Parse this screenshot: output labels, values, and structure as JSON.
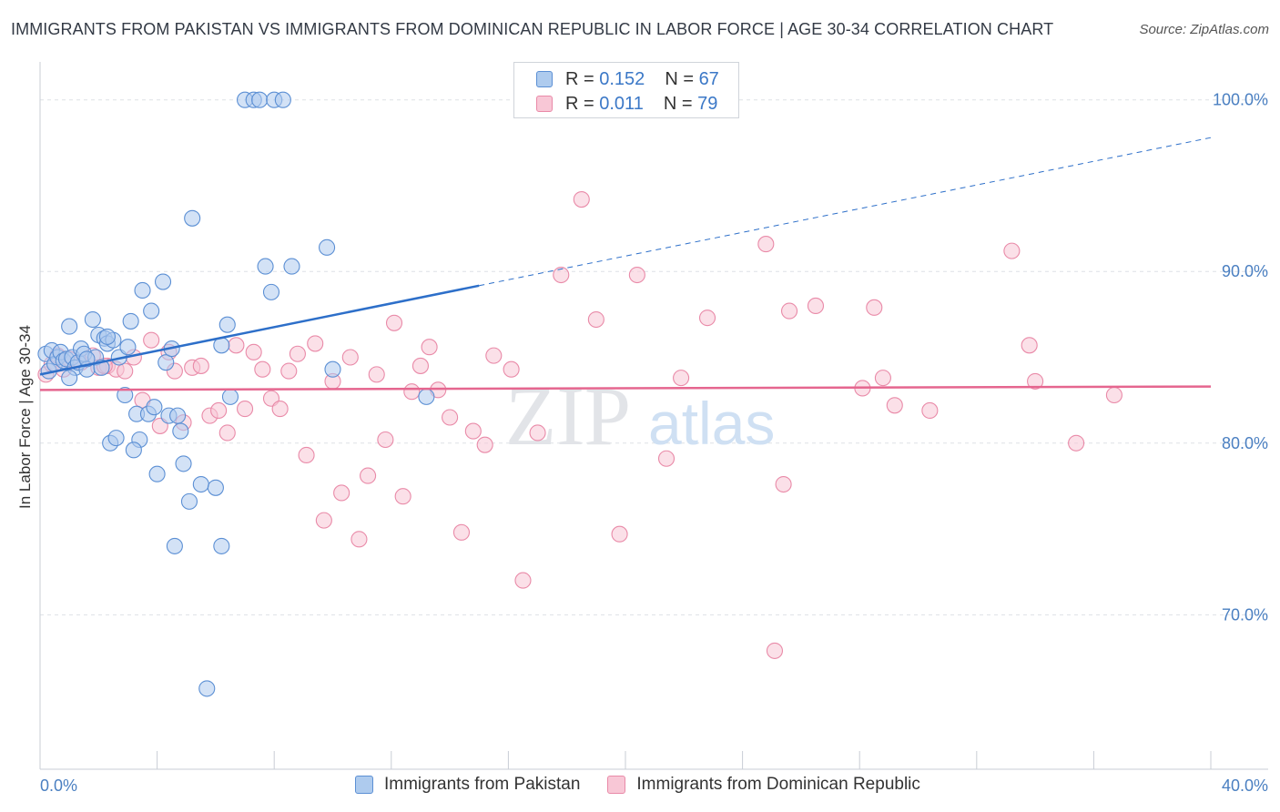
{
  "header": {
    "title": "IMMIGRANTS FROM PAKISTAN VS IMMIGRANTS FROM DOMINICAN REPUBLIC IN LABOR FORCE | AGE 30-34 CORRELATION CHART",
    "source": "Source: ZipAtlas.com"
  },
  "watermark": {
    "zip": "ZIP",
    "atlas": "atlas"
  },
  "legend_top": {
    "rows": [
      {
        "r_label": "R = ",
        "r_value": "0.152",
        "n_label": "N = ",
        "n_value": "67"
      },
      {
        "r_label": "R = ",
        "r_value": "0.011",
        "n_label": "N = ",
        "n_value": "79"
      }
    ]
  },
  "legend_bottom": {
    "items": [
      {
        "label": "Immigrants from Pakistan"
      },
      {
        "label": "Immigrants from Dominican Republic"
      }
    ]
  },
  "colors": {
    "pakistan_fill": "#aecbee",
    "pakistan_stroke": "#5b8fd4",
    "pakistan_line": "#2d6fc9",
    "dominican_fill": "#f8c7d6",
    "dominican_stroke": "#e98aa8",
    "dominican_line": "#e5668f",
    "grid": "#dde1e6",
    "axis_text": "#4a7fc1"
  },
  "chart_data": {
    "type": "scatter",
    "title": "IMMIGRANTS FROM PAKISTAN VS IMMIGRANTS FROM DOMINICAN REPUBLIC IN LABOR FORCE | AGE 30-34 CORRELATION CHART",
    "xlabel": "",
    "ylabel": "In Labor Force | Age 30-34",
    "xlim": [
      0,
      40
    ],
    "ylim": [
      61,
      102
    ],
    "x_tick_labels": [
      {
        "value": 0,
        "label": "0.0%"
      },
      {
        "value": 40,
        "label": "40.0%"
      }
    ],
    "y_tick_labels": [
      {
        "value": 100,
        "label": "100.0%"
      },
      {
        "value": 90,
        "label": "90.0%"
      },
      {
        "value": 80,
        "label": "80.0%"
      },
      {
        "value": 70,
        "label": "70.0%"
      }
    ],
    "y_gridlines": [
      100,
      90,
      80,
      70
    ],
    "x_minor_ticks": [
      4,
      8,
      12,
      16,
      20,
      24,
      28,
      32,
      36,
      40
    ],
    "series": [
      {
        "name": "Immigrants from Pakistan",
        "R": 0.152,
        "N": 67,
        "trend": {
          "x_start": 0,
          "y_start": 84.0,
          "x_solid_end": 15.0,
          "x_end": 40,
          "y_end": 97.8
        },
        "points": [
          [
            0.2,
            85.2
          ],
          [
            0.3,
            84.2
          ],
          [
            0.4,
            85.4
          ],
          [
            0.5,
            84.6
          ],
          [
            0.6,
            85.0
          ],
          [
            0.7,
            85.3
          ],
          [
            0.8,
            84.8
          ],
          [
            0.9,
            84.9
          ],
          [
            1.0,
            86.8
          ],
          [
            1.1,
            85.0
          ],
          [
            1.2,
            84.4
          ],
          [
            1.3,
            84.7
          ],
          [
            1.0,
            83.8
          ],
          [
            1.4,
            85.5
          ],
          [
            1.5,
            85.2
          ],
          [
            1.6,
            84.3
          ],
          [
            1.8,
            87.2
          ],
          [
            1.9,
            85.0
          ],
          [
            1.6,
            84.9
          ],
          [
            2.0,
            86.3
          ],
          [
            2.2,
            86.1
          ],
          [
            2.3,
            85.8
          ],
          [
            2.4,
            80.0
          ],
          [
            2.5,
            86.0
          ],
          [
            2.6,
            80.3
          ],
          [
            2.7,
            85.0
          ],
          [
            2.3,
            86.2
          ],
          [
            2.9,
            82.8
          ],
          [
            3.0,
            85.6
          ],
          [
            3.1,
            87.1
          ],
          [
            3.3,
            81.7
          ],
          [
            3.4,
            80.2
          ],
          [
            3.5,
            88.9
          ],
          [
            3.7,
            81.7
          ],
          [
            3.8,
            87.7
          ],
          [
            3.9,
            82.1
          ],
          [
            4.0,
            78.2
          ],
          [
            4.2,
            89.4
          ],
          [
            4.3,
            84.7
          ],
          [
            4.4,
            81.6
          ],
          [
            4.5,
            85.5
          ],
          [
            4.6,
            74.0
          ],
          [
            4.7,
            81.6
          ],
          [
            4.8,
            80.7
          ],
          [
            4.9,
            78.8
          ],
          [
            5.1,
            76.6
          ],
          [
            5.2,
            93.1
          ],
          [
            5.5,
            77.6
          ],
          [
            5.7,
            65.7
          ],
          [
            6.0,
            77.4
          ],
          [
            6.2,
            74.0
          ],
          [
            6.4,
            86.9
          ],
          [
            6.5,
            82.7
          ],
          [
            6.2,
            85.7
          ],
          [
            7.0,
            100.0
          ],
          [
            7.3,
            100.0
          ],
          [
            7.5,
            100.0
          ],
          [
            7.7,
            90.3
          ],
          [
            7.9,
            88.8
          ],
          [
            8.0,
            100.0
          ],
          [
            8.3,
            100.0
          ],
          [
            8.6,
            90.3
          ],
          [
            9.8,
            91.4
          ],
          [
            13.2,
            82.7
          ],
          [
            10.0,
            84.3
          ],
          [
            2.1,
            84.4
          ],
          [
            3.2,
            79.6
          ]
        ]
      },
      {
        "name": "Immigrants from Dominican Republic",
        "R": 0.011,
        "N": 79,
        "trend": {
          "x_start": 0,
          "y_start": 83.1,
          "x_end": 40,
          "y_end": 83.3
        },
        "points": [
          [
            0.2,
            84.0
          ],
          [
            0.4,
            84.6
          ],
          [
            0.6,
            85.1
          ],
          [
            0.8,
            84.3
          ],
          [
            1.0,
            84.9
          ],
          [
            1.4,
            84.7
          ],
          [
            1.8,
            85.1
          ],
          [
            2.0,
            84.4
          ],
          [
            2.3,
            84.5
          ],
          [
            2.6,
            84.3
          ],
          [
            2.9,
            84.2
          ],
          [
            3.2,
            85.0
          ],
          [
            3.5,
            82.5
          ],
          [
            3.8,
            86.0
          ],
          [
            4.1,
            81.0
          ],
          [
            4.4,
            85.3
          ],
          [
            4.6,
            84.2
          ],
          [
            4.9,
            81.2
          ],
          [
            5.2,
            84.4
          ],
          [
            5.5,
            84.5
          ],
          [
            5.8,
            81.6
          ],
          [
            6.1,
            81.9
          ],
          [
            6.4,
            80.6
          ],
          [
            6.7,
            85.7
          ],
          [
            7.0,
            82.0
          ],
          [
            7.3,
            85.3
          ],
          [
            7.6,
            84.3
          ],
          [
            7.9,
            82.6
          ],
          [
            8.2,
            82.0
          ],
          [
            8.5,
            84.2
          ],
          [
            8.8,
            85.2
          ],
          [
            9.1,
            79.3
          ],
          [
            9.4,
            85.8
          ],
          [
            9.7,
            75.5
          ],
          [
            10.0,
            83.6
          ],
          [
            10.3,
            77.1
          ],
          [
            10.6,
            85.0
          ],
          [
            10.9,
            74.4
          ],
          [
            11.2,
            78.1
          ],
          [
            11.5,
            84.0
          ],
          [
            11.8,
            80.2
          ],
          [
            12.1,
            87.0
          ],
          [
            12.4,
            76.9
          ],
          [
            12.7,
            83.0
          ],
          [
            13.0,
            84.5
          ],
          [
            13.3,
            85.6
          ],
          [
            13.6,
            83.1
          ],
          [
            14.0,
            81.5
          ],
          [
            14.4,
            74.8
          ],
          [
            14.8,
            80.7
          ],
          [
            15.2,
            79.9
          ],
          [
            15.5,
            85.1
          ],
          [
            16.1,
            84.3
          ],
          [
            16.5,
            72.0
          ],
          [
            17.0,
            80.6
          ],
          [
            17.8,
            89.8
          ],
          [
            18.5,
            94.2
          ],
          [
            19.0,
            87.2
          ],
          [
            19.8,
            74.7
          ],
          [
            20.4,
            89.8
          ],
          [
            21.4,
            79.1
          ],
          [
            21.9,
            83.8
          ],
          [
            22.8,
            87.3
          ],
          [
            24.8,
            91.6
          ],
          [
            25.1,
            67.9
          ],
          [
            25.4,
            77.6
          ],
          [
            25.6,
            87.7
          ],
          [
            26.5,
            88.0
          ],
          [
            28.1,
            83.2
          ],
          [
            28.5,
            87.9
          ],
          [
            28.8,
            83.8
          ],
          [
            29.2,
            82.2
          ],
          [
            30.4,
            81.9
          ],
          [
            33.2,
            91.2
          ],
          [
            33.8,
            85.7
          ],
          [
            34.0,
            83.6
          ],
          [
            35.4,
            80.0
          ],
          [
            36.7,
            82.8
          ],
          [
            2.2,
            84.5
          ]
        ]
      }
    ]
  }
}
